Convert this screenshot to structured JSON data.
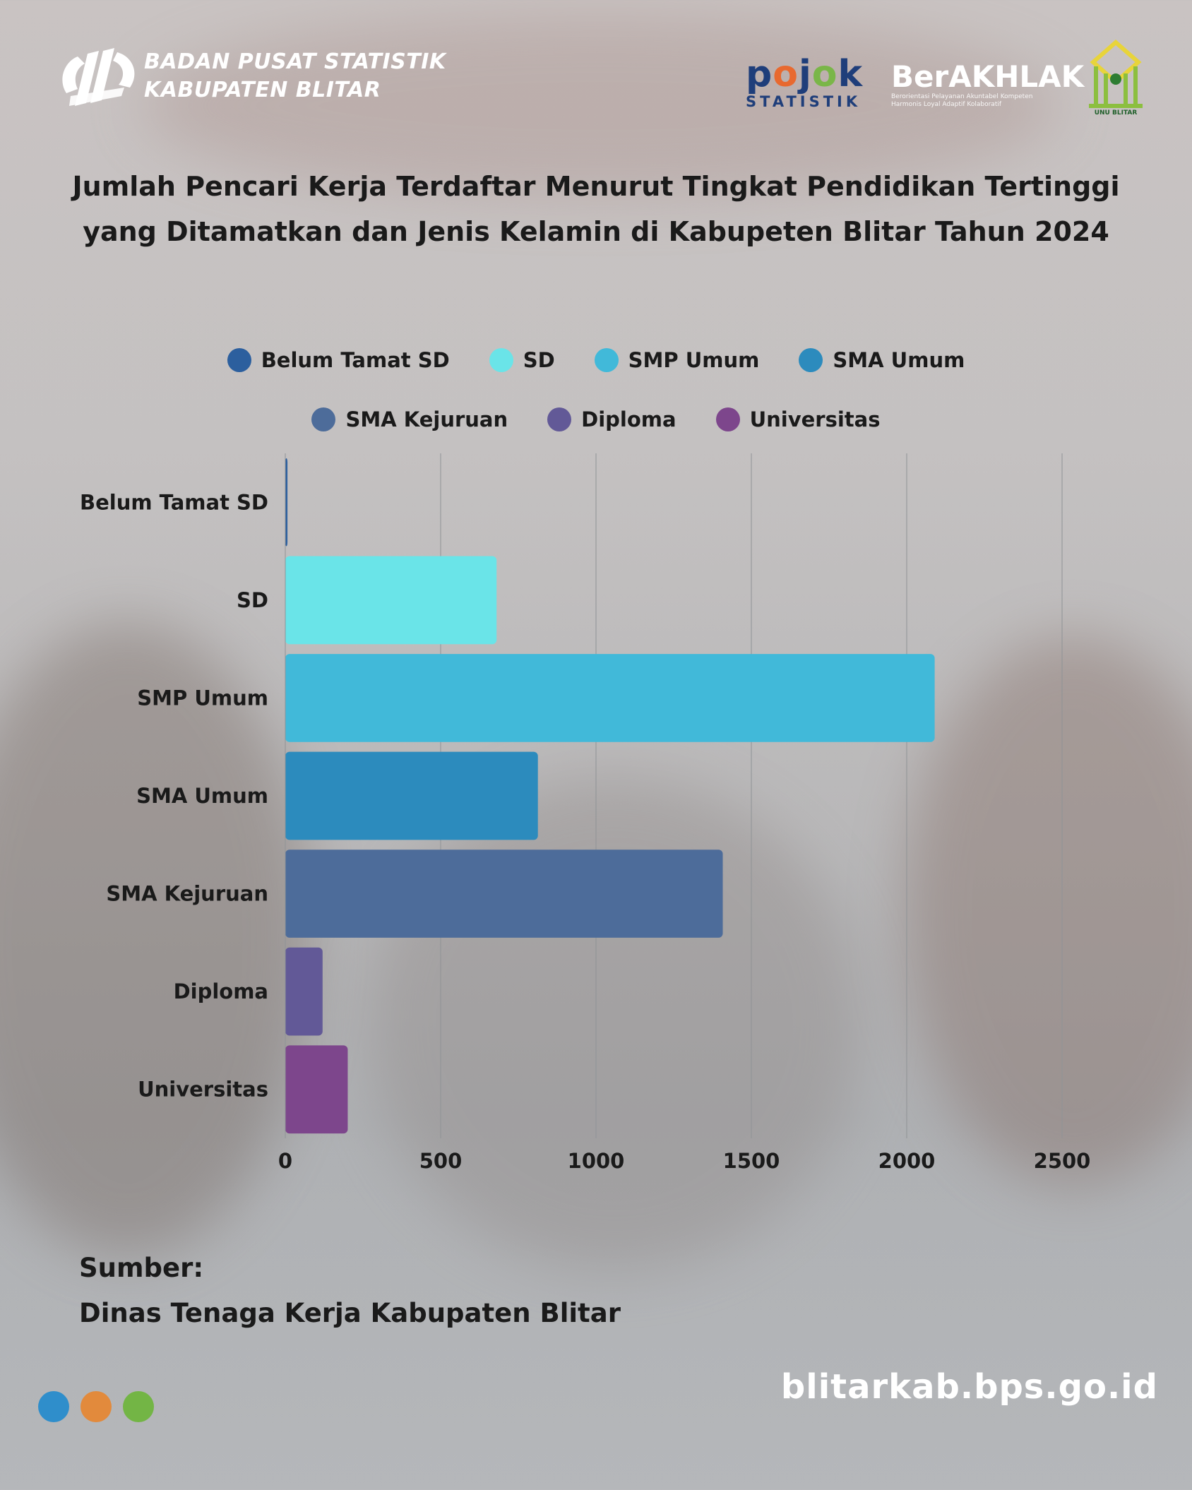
{
  "header": {
    "agency_line1": "BADAN PUSAT STATISTIK",
    "agency_line2": "KABUPATEN BLITAR",
    "pojok_word": "pojok",
    "pojok_sub": "STATISTIK",
    "berakhlak_word": "BerAKHLAK",
    "berakhlak_sub": "Berorientasi Pelayanan Akuntabel Kompeten Harmonis Loyal Adaptif Kolaboratif",
    "unu_label": "UNU BLITAR"
  },
  "colors": {
    "belum_tamat_sd": "#2c5f9e",
    "sd": "#6ae4e8",
    "smp_umum": "#41b9d9",
    "sma_umum": "#2c8bbd",
    "sma_kejuruan": "#4d6c9a",
    "diploma": "#625997",
    "universitas": "#7d468c",
    "dot_blue": "#2f8ecb",
    "dot_orange": "#e28a3c",
    "dot_green": "#73b545"
  },
  "chart_data": {
    "type": "bar",
    "orientation": "horizontal",
    "title": "Jumlah Pencari Kerja Terdaftar Menurut Tingkat Pendidikan Tertinggi yang Ditamatkan dan Jenis Kelamin di Kabupeten Blitar Tahun 2024",
    "categories": [
      "Belum Tamat SD",
      "SD",
      "SMP Umum",
      "SMA Umum",
      "SMA Kejuruan",
      "Diploma",
      "Universitas"
    ],
    "values": [
      7,
      680,
      2090,
      813,
      1408,
      120,
      201
    ],
    "xlim": [
      0,
      2500
    ],
    "xticks": [
      "0",
      "500",
      "1000",
      "1500",
      "2000",
      "2500"
    ],
    "grid": "vertical",
    "legend_position": "top",
    "legend": [
      "Belum Tamat SD",
      "SD",
      "SMP Umum",
      "SMA Umum",
      "SMA Kejuruan",
      "Diploma",
      "Universitas"
    ]
  },
  "footer": {
    "source_label": "Sumber:",
    "source_text": "Dinas Tenaga Kerja Kabupaten Blitar",
    "website": "blitarkab.bps.go.id"
  }
}
